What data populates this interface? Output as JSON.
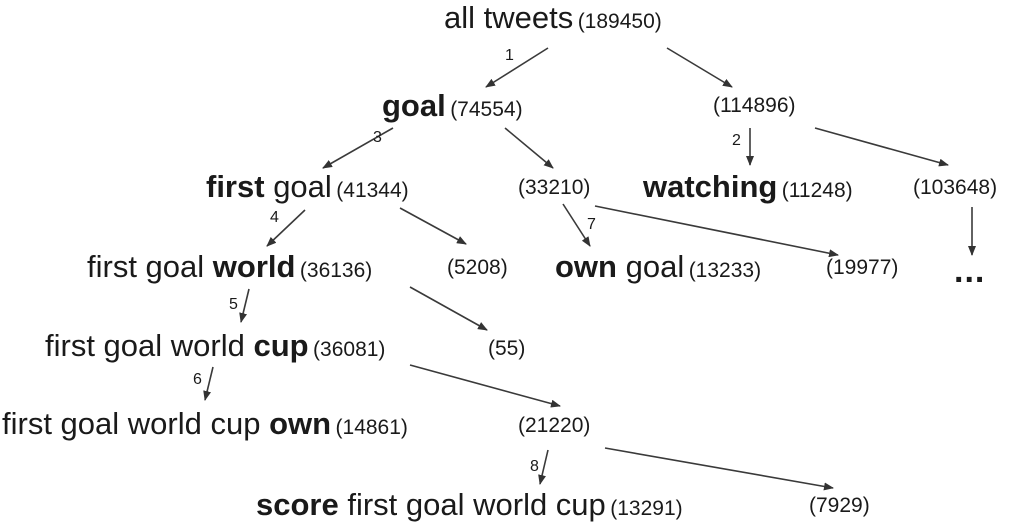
{
  "nodes": {
    "root": {
      "label": "all tweets",
      "count": "(189450)"
    },
    "goal": {
      "bold": "goal",
      "count": "(74554)"
    },
    "not_goal": {
      "count": "(114896)"
    },
    "first": {
      "bold": "first",
      "rest": " goal",
      "count": "(41344)"
    },
    "goal_other": {
      "count": "(33210)"
    },
    "watching": {
      "bold": "watching",
      "count": "(11248)"
    },
    "not_watching": {
      "count": "(103648)"
    },
    "world": {
      "pre": "first goal ",
      "bold": "world",
      "count": "(36136)"
    },
    "first_other": {
      "count": "(5208)"
    },
    "own_goal": {
      "bold": "own",
      "rest": " goal",
      "count": "(13233)"
    },
    "goal_other_rest": {
      "count": "(19977)"
    },
    "ellipsis": {
      "text": "..."
    },
    "cup": {
      "pre": "first goal world ",
      "bold": "cup",
      "count": "(36081)"
    },
    "world_other": {
      "count": "(55)"
    },
    "own": {
      "pre": "first goal world cup ",
      "bold": "own",
      "count": "(14861)"
    },
    "cup_other": {
      "count": "(21220)"
    },
    "score": {
      "bold": "score",
      "rest": " first goal world cup",
      "count": "(13291)"
    },
    "cup_other_rest": {
      "count": "(7929)"
    }
  },
  "steps": [
    "1",
    "2",
    "3",
    "4",
    "5",
    "6",
    "7",
    "8"
  ]
}
